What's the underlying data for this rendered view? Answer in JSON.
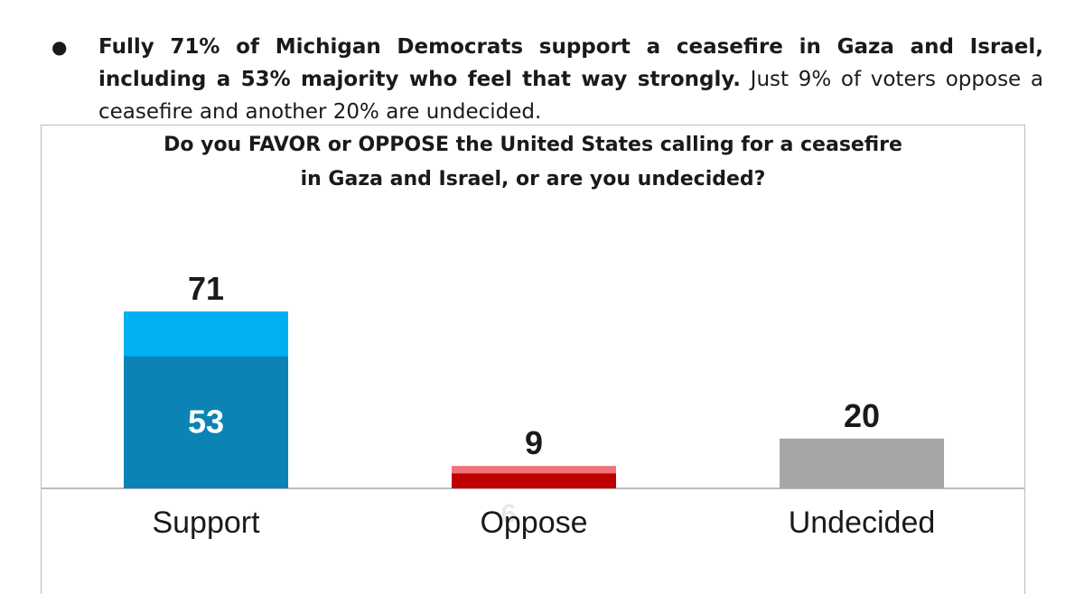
{
  "bullet": {
    "symbol": "●",
    "bold_text": "Fully 71% of Michigan Democrats support a ceasefire in Gaza and Israel, including a 53% majority who feel that way strongly.",
    "normal_text": " Just 9% of voters oppose a ceasefire and another 20% are undecided."
  },
  "chart_data": {
    "type": "bar",
    "title_lines": [
      "Do you FAVOR or OPPOSE the United States calling for a ceasefire",
      "in Gaza and Israel, or are you undecided?"
    ],
    "categories": [
      "Support",
      "Oppose",
      "Undecided"
    ],
    "values": [
      71,
      9,
      20
    ],
    "strong_values": [
      53,
      6,
      null
    ],
    "value_labels": [
      "71",
      "9",
      "20"
    ],
    "strong_labels": [
      "53",
      "6",
      ""
    ],
    "colors": {
      "support_total": "#00b0f0",
      "support_strong": "#0b84b5",
      "oppose_total": "#f0737a",
      "oppose_strong": "#c00000",
      "undecided": "#a6a6a6",
      "strong_label_support": "#ffffff",
      "strong_label_oppose": "#e8e8e8"
    },
    "ylim": [
      0,
      100
    ],
    "grid": false,
    "legend": "none"
  }
}
